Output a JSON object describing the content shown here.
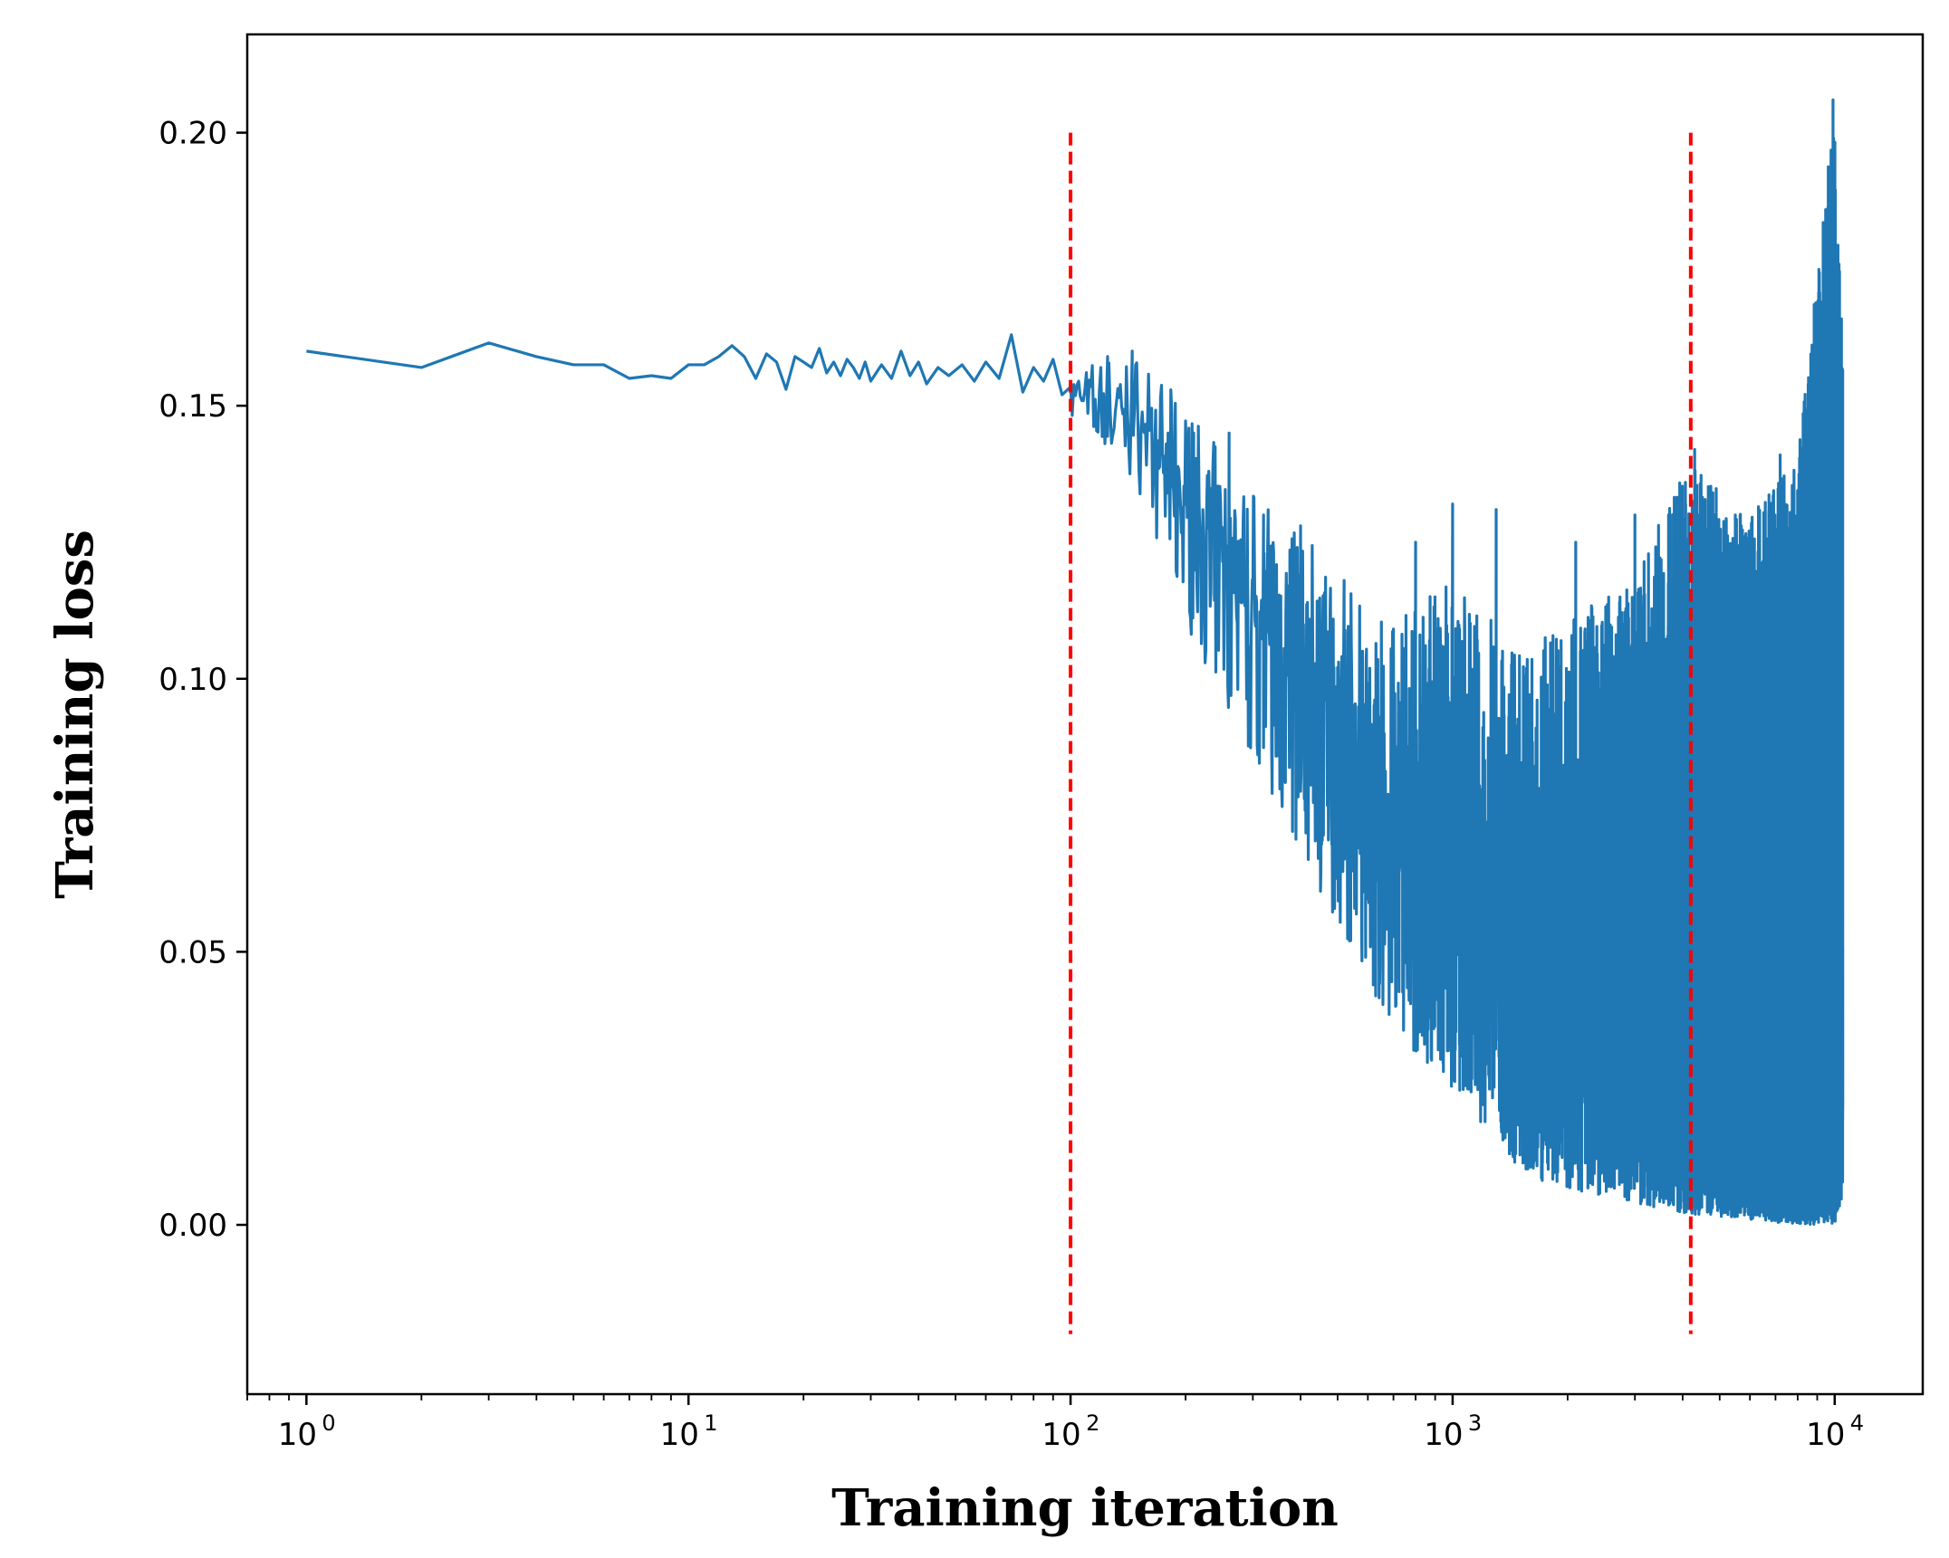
{
  "colors": {
    "series": "#1f77b4",
    "marker_lines": "#ff0000",
    "axes": "#000000",
    "background": "#ffffff"
  },
  "chart_data": {
    "type": "line",
    "title": "",
    "xlabel": "Training iteration",
    "ylabel": "Training loss",
    "xscale": "log",
    "xlim": [
      0.7,
      17000
    ],
    "ylim": [
      -0.031,
      0.218
    ],
    "grid": false,
    "legend": "none",
    "x_ticks": [
      {
        "value": 1,
        "base": "10",
        "exp": "0"
      },
      {
        "value": 10,
        "base": "10",
        "exp": "1"
      },
      {
        "value": 100,
        "base": "10",
        "exp": "2"
      },
      {
        "value": 1000,
        "base": "10",
        "exp": "3"
      },
      {
        "value": 10000,
        "base": "10",
        "exp": "4"
      }
    ],
    "y_ticks": [
      {
        "value": 0.0,
        "label": "0.00"
      },
      {
        "value": 0.05,
        "label": "0.05"
      },
      {
        "value": 0.1,
        "label": "0.10"
      },
      {
        "value": 0.15,
        "label": "0.15"
      },
      {
        "value": 0.2,
        "label": "0.20"
      }
    ],
    "vlines": [
      {
        "x": 100,
        "ymin": -0.02,
        "ymax": 0.2,
        "style": "dashed"
      },
      {
        "x": 4200,
        "ymin": -0.02,
        "ymax": 0.2,
        "style": "dashed"
      }
    ],
    "series": [
      {
        "name": "Training loss",
        "x_start": 1,
        "x_end": 10500,
        "early_points": [
          [
            1,
            0.16
          ],
          [
            2,
            0.157
          ],
          [
            3,
            0.1615
          ],
          [
            4,
            0.159
          ],
          [
            5,
            0.1575
          ],
          [
            6,
            0.1575
          ],
          [
            7,
            0.155
          ],
          [
            8,
            0.1555
          ],
          [
            9,
            0.155
          ],
          [
            10,
            0.1575
          ],
          [
            11,
            0.1575
          ],
          [
            12,
            0.159
          ],
          [
            13,
            0.161
          ],
          [
            14,
            0.159
          ],
          [
            15,
            0.155
          ],
          [
            16,
            0.1595
          ],
          [
            17,
            0.158
          ],
          [
            18,
            0.153
          ],
          [
            19,
            0.159
          ],
          [
            20,
            0.158
          ],
          [
            21,
            0.157
          ],
          [
            22,
            0.1605
          ],
          [
            23,
            0.156
          ],
          [
            24,
            0.158
          ],
          [
            25,
            0.1555
          ],
          [
            26,
            0.1585
          ],
          [
            27,
            0.157
          ],
          [
            28,
            0.155
          ],
          [
            29,
            0.158
          ],
          [
            30,
            0.1545
          ],
          [
            32,
            0.1575
          ],
          [
            34,
            0.155
          ],
          [
            36,
            0.16
          ],
          [
            38,
            0.1555
          ],
          [
            40,
            0.158
          ],
          [
            42,
            0.154
          ],
          [
            45,
            0.157
          ],
          [
            48,
            0.1555
          ],
          [
            52,
            0.1575
          ],
          [
            56,
            0.1545
          ],
          [
            60,
            0.158
          ],
          [
            65,
            0.155
          ],
          [
            70,
            0.163
          ],
          [
            75,
            0.1525
          ],
          [
            80,
            0.157
          ],
          [
            85,
            0.1545
          ],
          [
            90,
            0.1585
          ],
          [
            95,
            0.152
          ]
        ],
        "envelope": [
          {
            "x": 100,
            "mean": 0.152,
            "low": 0.147,
            "high": 0.158
          },
          {
            "x": 150,
            "mean": 0.146,
            "low": 0.135,
            "high": 0.16
          },
          {
            "x": 200,
            "mean": 0.13,
            "low": 0.11,
            "high": 0.15
          },
          {
            "x": 300,
            "mean": 0.11,
            "low": 0.085,
            "high": 0.135
          },
          {
            "x": 500,
            "mean": 0.085,
            "low": 0.055,
            "high": 0.12
          },
          {
            "x": 700,
            "mean": 0.065,
            "low": 0.035,
            "high": 0.11
          },
          {
            "x": 1000,
            "mean": 0.055,
            "low": 0.025,
            "high": 0.12
          },
          {
            "x": 1500,
            "mean": 0.045,
            "low": 0.01,
            "high": 0.105
          },
          {
            "x": 2000,
            "mean": 0.04,
            "low": 0.006,
            "high": 0.11
          },
          {
            "x": 3000,
            "mean": 0.038,
            "low": 0.004,
            "high": 0.12
          },
          {
            "x": 4200,
            "mean": 0.037,
            "low": 0.002,
            "high": 0.14
          },
          {
            "x": 6000,
            "mean": 0.032,
            "low": 0.001,
            "high": 0.13
          },
          {
            "x": 8000,
            "mean": 0.03,
            "low": 0.0,
            "high": 0.14
          },
          {
            "x": 10000,
            "mean": 0.03,
            "low": 0.0,
            "high": 0.206
          },
          {
            "x": 10500,
            "mean": 0.03,
            "low": 0.005,
            "high": 0.158
          }
        ],
        "spikes": [
          [
            125,
            0.159
          ],
          [
            145,
            0.16
          ],
          [
            180,
            0.145
          ],
          [
            210,
            0.145
          ],
          [
            260,
            0.145
          ],
          [
            320,
            0.13
          ],
          [
            400,
            0.128
          ],
          [
            520,
            0.118
          ],
          [
            800,
            0.125
          ],
          [
            1000,
            0.132
          ],
          [
            1300,
            0.131
          ],
          [
            2100,
            0.125
          ],
          [
            3000,
            0.13
          ],
          [
            4300,
            0.142
          ],
          [
            5800,
            0.126
          ],
          [
            7200,
            0.141
          ],
          [
            8200,
            0.126
          ],
          [
            9200,
            0.169
          ],
          [
            9700,
            0.165
          ],
          [
            9900,
            0.206
          ],
          [
            10300,
            0.158
          ]
        ],
        "seed": 7
      }
    ]
  }
}
